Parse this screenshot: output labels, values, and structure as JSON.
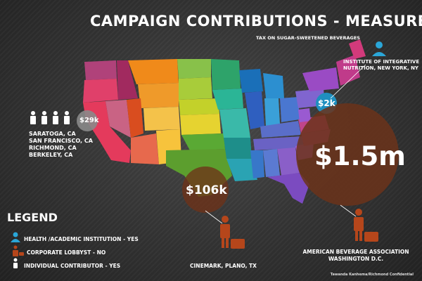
{
  "title": "CAMPAIGN CONTRIBUTIONS - MEASURE N",
  "subtitle": "TAX ON SUGAR-SWEETENED BEVERAGES",
  "bubbles": {
    "ca": {
      "amount": "$29k"
    },
    "ny": {
      "amount": "$2k"
    },
    "tx": {
      "amount": "$106k"
    },
    "dc": {
      "amount": "$1.5m"
    }
  },
  "ca_cities": [
    "SARATOGA, CA",
    "SAN FRANCISCO, CA",
    "RICHMOND, CA",
    "BERKELEY, CA"
  ],
  "ny_org": [
    "INSTITUTE OF INTEGRATIVE",
    "NUTRITION, NEW YORK, NY"
  ],
  "tx_org": "CINEMARK, PLANO, TX",
  "dc_org": [
    "AMERICAN BEVERAGE ASSOCIATION",
    "WASHINGTON D.C."
  ],
  "legend": {
    "title": "LEGEND",
    "items": [
      {
        "label": "HEALTH /ACADEMIC INSTITUTION - YES",
        "icon": "academic-person-icon",
        "color": "#2aa6d8"
      },
      {
        "label": "CORPORATE LOBBYST - NO",
        "icon": "lobbyist-icon",
        "color": "#b5461b"
      },
      {
        "label": "INDIVIDUAL CONTRIBUTOR - YES",
        "icon": "individual-person-icon",
        "color": "#ffffff"
      }
    ]
  },
  "credit": "Tawanda Kanhema/Richmond Confidential",
  "colors": {
    "academic": "#2aa6d8",
    "lobbyist": "#b5461b",
    "bubble_ca": "#8a8a8a",
    "bubble_ny": "#1f8fbf",
    "bubble_lobby": "#7a3a1c"
  }
}
